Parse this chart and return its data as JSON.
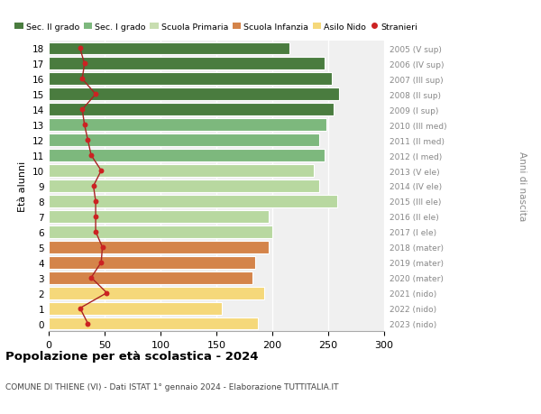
{
  "ages": [
    18,
    17,
    16,
    15,
    14,
    13,
    12,
    11,
    10,
    9,
    8,
    7,
    6,
    5,
    4,
    3,
    2,
    1,
    0
  ],
  "bar_values": [
    215,
    247,
    253,
    260,
    255,
    248,
    242,
    247,
    237,
    242,
    258,
    197,
    200,
    197,
    185,
    182,
    193,
    155,
    187
  ],
  "stranieri": [
    28,
    32,
    30,
    42,
    30,
    32,
    35,
    38,
    47,
    40,
    42,
    42,
    42,
    48,
    47,
    38,
    52,
    28,
    35
  ],
  "bar_colors": [
    "#4a7c3f",
    "#4a7c3f",
    "#4a7c3f",
    "#4a7c3f",
    "#4a7c3f",
    "#7db87d",
    "#7db87d",
    "#7db87d",
    "#b8d8a0",
    "#b8d8a0",
    "#b8d8a0",
    "#b8d8a0",
    "#b8d8a0",
    "#d4844a",
    "#d4844a",
    "#d4844a",
    "#f5d87a",
    "#f5d87a",
    "#f5d87a"
  ],
  "right_labels": [
    "2005 (V sup)",
    "2006 (IV sup)",
    "2007 (III sup)",
    "2008 (II sup)",
    "2009 (I sup)",
    "2010 (III med)",
    "2011 (II med)",
    "2012 (I med)",
    "2013 (V ele)",
    "2014 (IV ele)",
    "2015 (III ele)",
    "2016 (II ele)",
    "2017 (I ele)",
    "2018 (mater)",
    "2019 (mater)",
    "2020 (mater)",
    "2021 (nido)",
    "2022 (nido)",
    "2023 (nido)"
  ],
  "legend_labels": [
    "Sec. II grado",
    "Sec. I grado",
    "Scuola Primaria",
    "Scuola Infanzia",
    "Asilo Nido",
    "Stranieri"
  ],
  "legend_colors": [
    "#4a7c3f",
    "#7db87d",
    "#c8ddb0",
    "#d4844a",
    "#f5d87a",
    "#cc2222"
  ],
  "stranieri_color": "#cc2222",
  "stranieri_line_color": "#aa2222",
  "title": "Popolazione per età scolastica - 2024",
  "subtitle": "COMUNE DI THIENE (VI) - Dati ISTAT 1° gennaio 2024 - Elaborazione TUTTITALIA.IT",
  "ylabel": "Età alunni",
  "right_ylabel": "Anni di nascita",
  "xlim": [
    0,
    300
  ],
  "bar_height": 0.82,
  "background_color": "#ffffff",
  "plot_bg_color": "#f0f0f0",
  "right_label_color": "#888888",
  "right_ylabel_color": "#888888"
}
